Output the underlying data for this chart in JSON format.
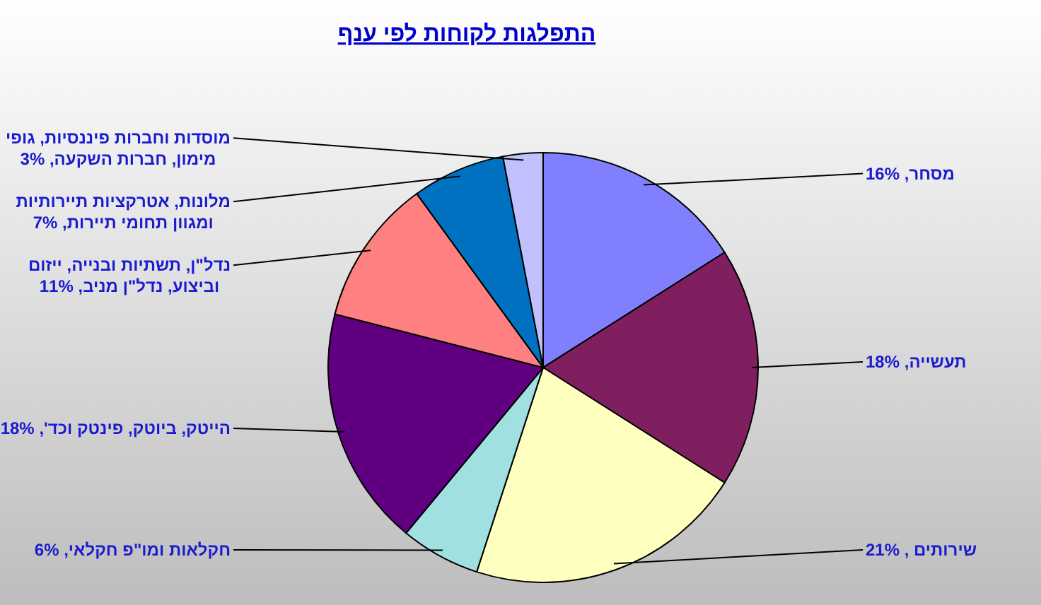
{
  "chart_data": {
    "type": "pie",
    "title": "התפלגות לקוחות לפי ענף",
    "categories": [
      "מסחר",
      "תעשייה",
      "שירותים ",
      "חקלאות ומו\"פ חקלאי",
      "הייטק, ביוטק, פינטק וכד'",
      "נדל\"ן, תשתיות ובנייה, ייזום וביצוע, נדל\"ן מניב",
      "מלונות, אטרקציות תיירותיות ומגוון תחומי תיירות",
      "מוסדות וחברות פיננסיות, גופי מימון, חברות השקעה"
    ],
    "values": [
      16,
      18,
      21,
      6,
      18,
      11,
      7,
      3
    ],
    "value_labels": [
      "16%",
      "18%",
      "21%",
      "6%",
      "18%",
      "11%",
      "7%",
      "3%"
    ],
    "colors": [
      "#8080ff",
      "#7f1f5f",
      "#ffffc0",
      "#a0e0e0",
      "#600080",
      "#ff8080",
      "#0070c0",
      "#c0c0ff"
    ]
  }
}
